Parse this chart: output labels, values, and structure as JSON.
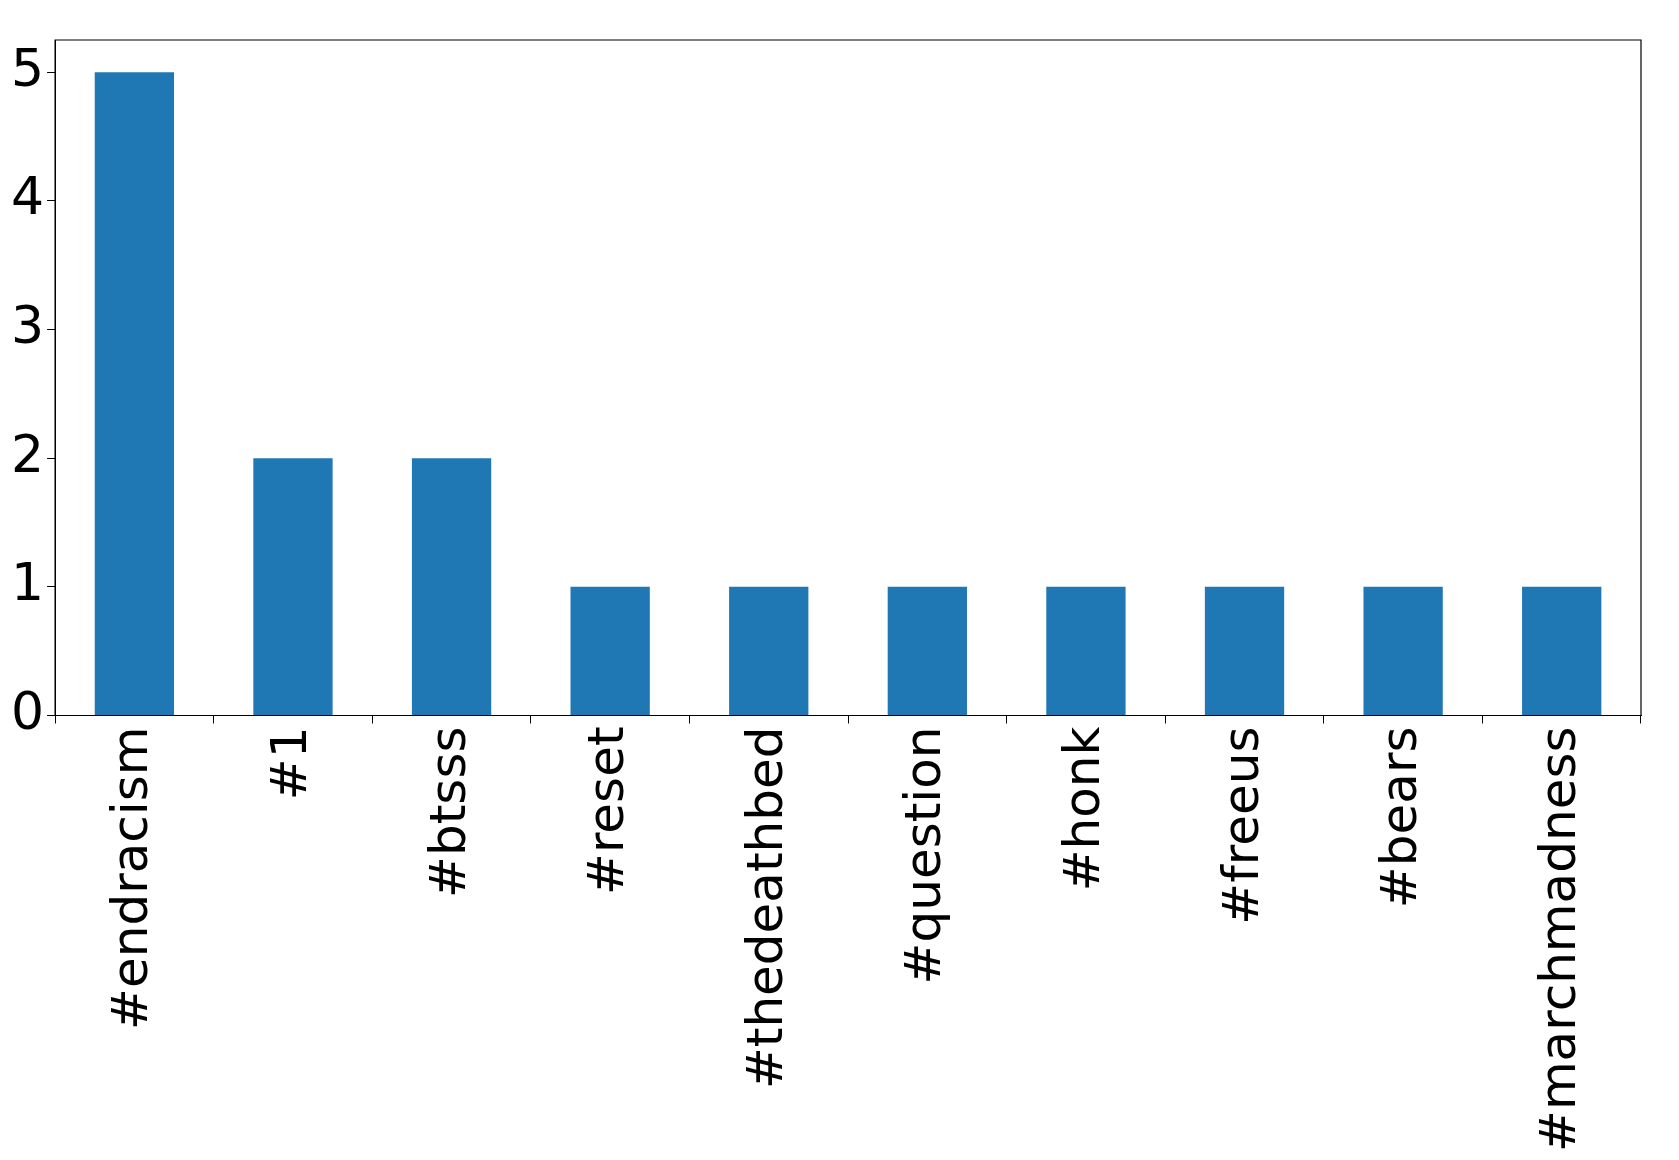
{
  "chart_data": {
    "type": "bar",
    "categories": [
      "#endracism",
      "#1",
      "#btsss",
      "#reset",
      "#thedeathbed",
      "#question",
      "#honk",
      "#freeus",
      "#bears",
      "#marchmadness"
    ],
    "values": [
      5,
      2,
      2,
      1,
      1,
      1,
      1,
      1,
      1,
      1
    ],
    "color": "#1f77b4",
    "ylim": [
      0,
      5.25
    ],
    "yticks": [
      0,
      1,
      2,
      3,
      4,
      5
    ],
    "legend": false
  }
}
